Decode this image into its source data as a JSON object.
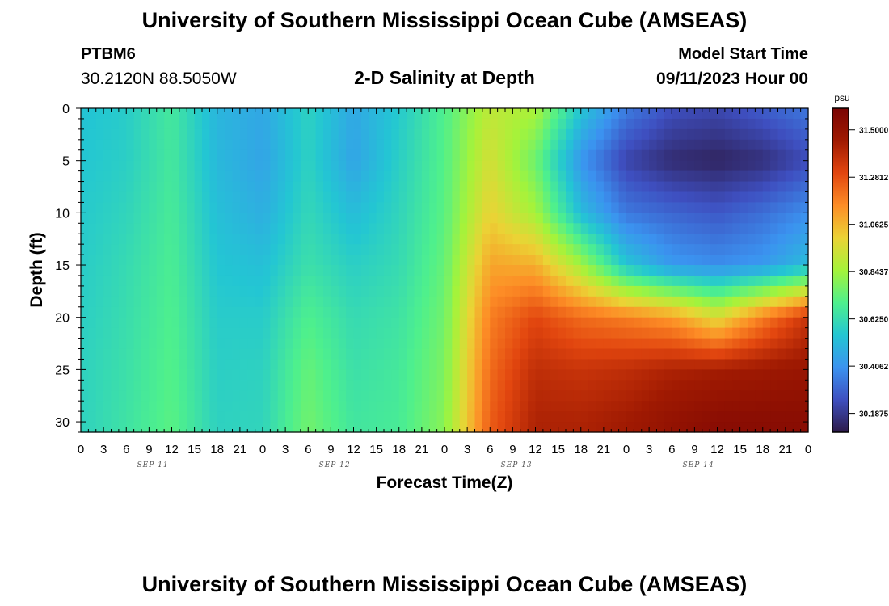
{
  "header": {
    "title": "University of Southern Mississippi Ocean Cube (AMSEAS)",
    "station_id": "PTBM6",
    "coords": "30.2120N  88.5050W",
    "subtitle": "2-D Salinity at Depth",
    "start_label": "Model Start Time",
    "start_value": "09/11/2023 Hour 00"
  },
  "footer": {
    "title": "University of Southern Mississippi Ocean Cube (AMSEAS)"
  },
  "colors": {
    "colormap": [
      "#2d1a48",
      "#3e4fc0",
      "#3b93f0",
      "#23c6d3",
      "#4ef08d",
      "#a5f33a",
      "#ebd335",
      "#fd8d26",
      "#e2460f",
      "#a01a02",
      "#7a0403"
    ]
  },
  "chart_data": {
    "type": "heatmap",
    "xlabel": "Forecast Time(Z)",
    "ylabel": "Depth (ft)",
    "x_tick_labels": [
      "0",
      "3",
      "6",
      "9",
      "12",
      "15",
      "18",
      "21",
      "0",
      "3",
      "6",
      "9",
      "12",
      "15",
      "18",
      "21",
      "0",
      "3",
      "6",
      "9",
      "12",
      "15",
      "18",
      "21",
      "0",
      "3",
      "6",
      "9",
      "12",
      "15",
      "18",
      "21",
      "0"
    ],
    "date_labels": [
      "SEP 11",
      "SEP 12",
      "SEP 13",
      "SEP 14"
    ],
    "y_ticks": [
      0,
      5,
      10,
      15,
      20,
      25,
      30
    ],
    "ylim": [
      0,
      31
    ],
    "xlim_hours": [
      0,
      96
    ],
    "colorbar": {
      "unit": "psu",
      "ticks": [
        "31.5000",
        "31.2812",
        "31.0625",
        "30.8437",
        "30.6250",
        "30.4062",
        "30.1875"
      ],
      "range": [
        30.1,
        31.6
      ]
    },
    "depths": [
      0,
      5,
      10,
      15,
      20,
      25,
      30
    ],
    "times": [
      0,
      6,
      12,
      18,
      24,
      30,
      36,
      42,
      48,
      54,
      60,
      66,
      72,
      78,
      84,
      90,
      96
    ],
    "values": [
      [
        30.54,
        30.57,
        30.67,
        30.5,
        30.46,
        30.59,
        30.46,
        30.56,
        30.7,
        30.9,
        30.86,
        30.55,
        30.35,
        30.25,
        30.23,
        30.28,
        30.34
      ],
      [
        30.55,
        30.58,
        30.67,
        30.51,
        30.45,
        30.59,
        30.45,
        30.58,
        30.71,
        30.95,
        30.75,
        30.41,
        30.22,
        30.15,
        30.13,
        30.16,
        30.24
      ],
      [
        30.56,
        30.6,
        30.68,
        30.53,
        30.48,
        30.61,
        30.52,
        30.6,
        30.72,
        31.0,
        30.85,
        30.52,
        30.34,
        30.3,
        30.27,
        30.32,
        30.39
      ],
      [
        30.57,
        30.62,
        30.69,
        30.55,
        30.53,
        30.64,
        30.58,
        30.62,
        30.74,
        31.1,
        31.08,
        30.85,
        30.55,
        30.42,
        30.39,
        30.42,
        30.52
      ],
      [
        30.58,
        30.63,
        30.7,
        30.57,
        30.57,
        30.7,
        30.62,
        30.65,
        30.76,
        31.18,
        31.3,
        31.22,
        31.18,
        31.12,
        30.97,
        31.18,
        31.36
      ],
      [
        30.59,
        30.64,
        30.71,
        30.58,
        30.59,
        30.74,
        30.64,
        30.67,
        30.78,
        31.22,
        31.38,
        31.36,
        31.38,
        31.42,
        31.44,
        31.46,
        31.48
      ],
      [
        30.59,
        30.65,
        30.72,
        30.59,
        30.6,
        30.76,
        30.66,
        30.68,
        30.8,
        31.25,
        31.42,
        31.42,
        31.45,
        31.5,
        31.54,
        31.54,
        31.54
      ]
    ]
  }
}
